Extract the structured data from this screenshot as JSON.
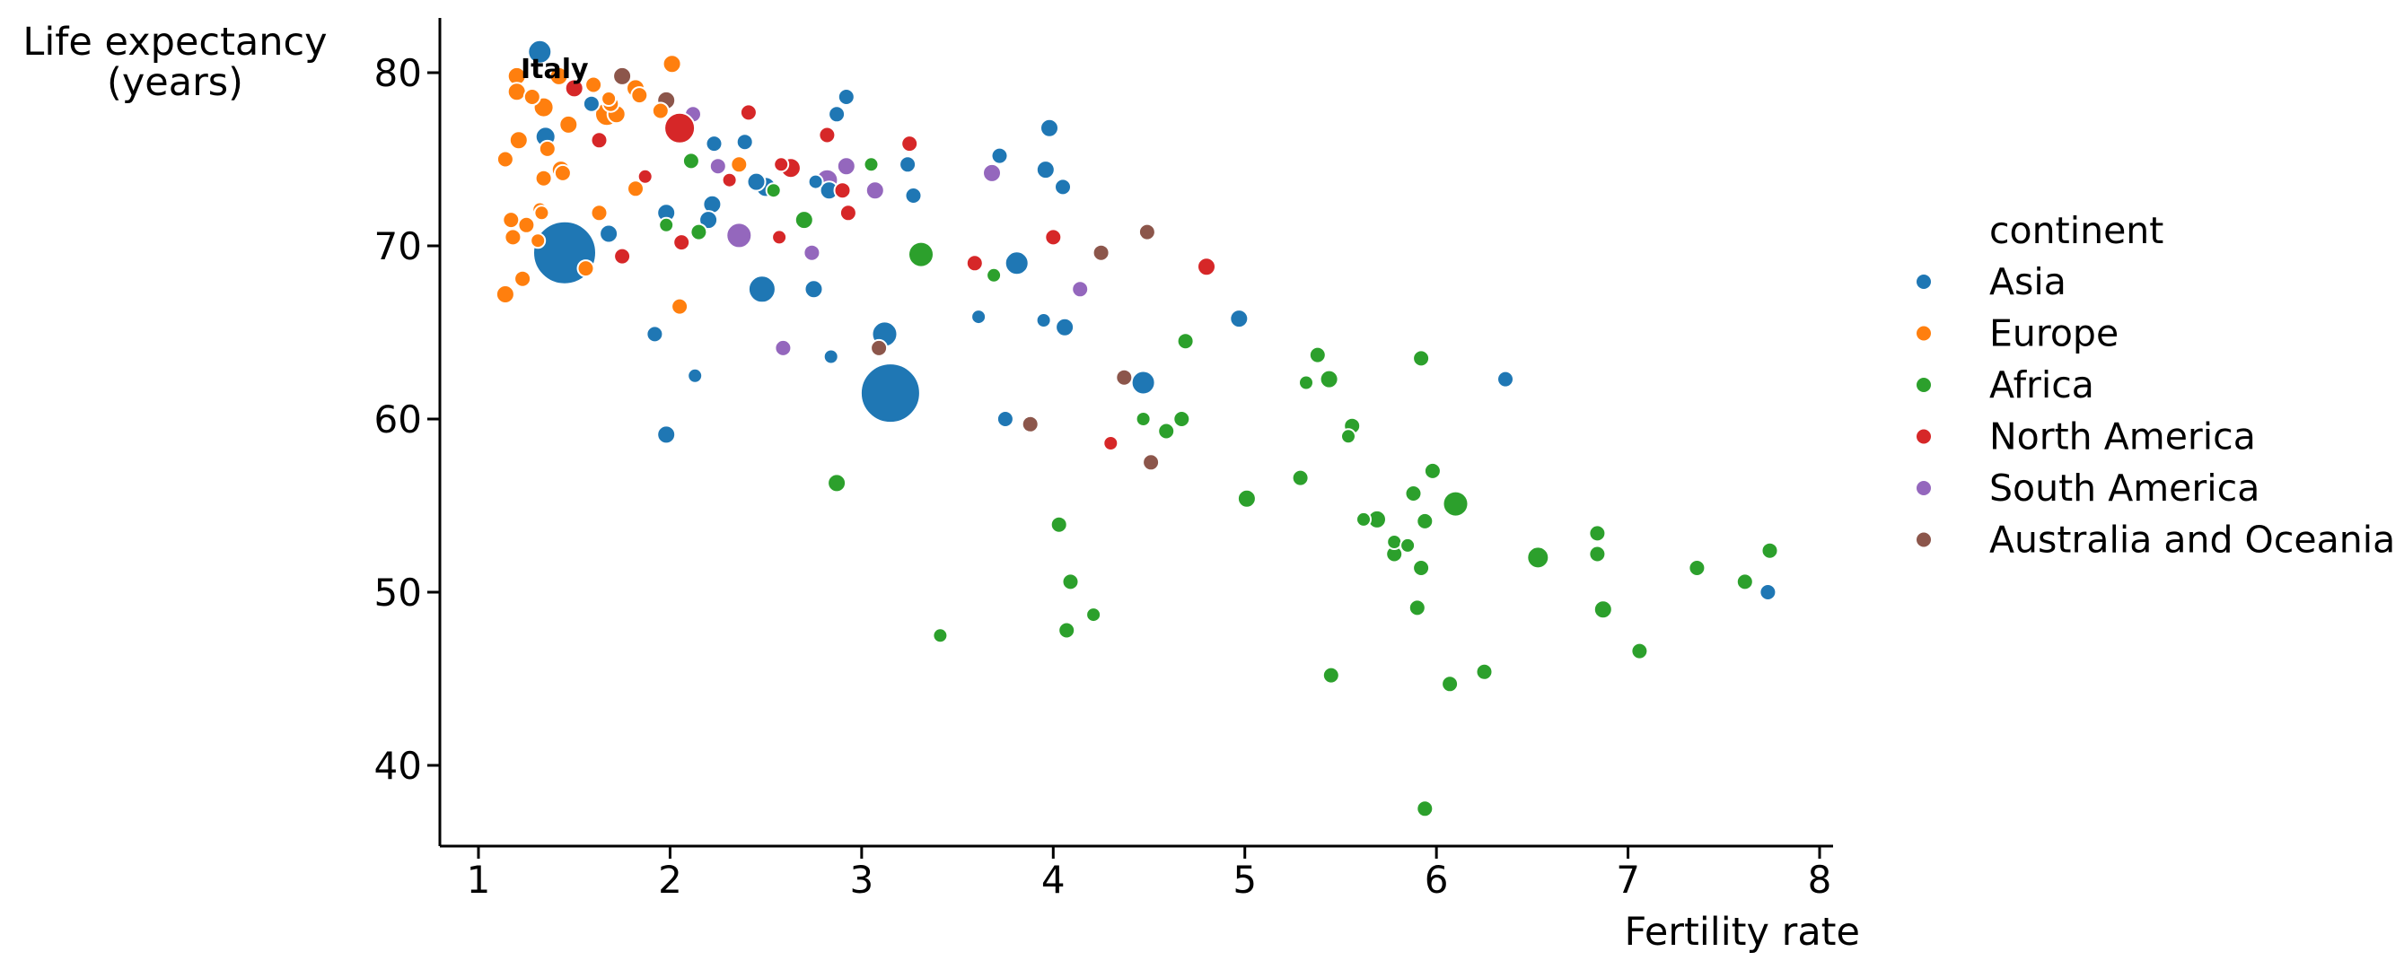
{
  "figure": {
    "background": "#ffffff",
    "text_color": "#000000"
  },
  "chart_data": {
    "type": "scatter",
    "title": "",
    "xlabel": "Fertility rate",
    "ylabel_line1": "Life expectancy",
    "ylabel_line2": "(years)",
    "x_ticks": [
      1,
      2,
      3,
      4,
      5,
      6,
      7,
      8
    ],
    "y_ticks": [
      40,
      50,
      60,
      70,
      80
    ],
    "xlim": [
      0.8,
      8.07
    ],
    "ylim": [
      35.3,
      83.2
    ],
    "grid": false,
    "legend_position": "right",
    "legend_title": "continent",
    "annotation": {
      "text": "Italy",
      "x": 1.22,
      "y": 79.7
    },
    "size_note": "third value per point = bubble radius in px (population-scaled)",
    "series": [
      {
        "name": "Asia",
        "color": "#1f77b4",
        "points": [
          [
            1.32,
            81.2,
            13
          ],
          [
            1.59,
            78.2,
            9
          ],
          [
            1.35,
            76.3,
            11
          ],
          [
            2.23,
            75.9,
            9
          ],
          [
            2.39,
            76.0,
            9
          ],
          [
            2.92,
            78.6,
            9
          ],
          [
            2.87,
            77.6,
            9
          ],
          [
            1.98,
            71.9,
            10
          ],
          [
            2.22,
            72.4,
            10
          ],
          [
            2.2,
            71.5,
            10
          ],
          [
            1.68,
            70.7,
            10
          ],
          [
            1.45,
            69.6,
            35
          ],
          [
            2.45,
            73.7,
            10
          ],
          [
            2.5,
            73.4,
            11
          ],
          [
            2.76,
            73.7,
            8
          ],
          [
            2.83,
            73.2,
            10
          ],
          [
            3.27,
            72.9,
            9
          ],
          [
            3.24,
            74.7,
            9
          ],
          [
            2.48,
            67.5,
            15
          ],
          [
            2.75,
            67.5,
            10
          ],
          [
            3.72,
            75.2,
            9
          ],
          [
            3.98,
            76.8,
            10
          ],
          [
            3.96,
            74.4,
            10
          ],
          [
            4.05,
            73.4,
            9
          ],
          [
            3.81,
            69.0,
            13
          ],
          [
            1.92,
            64.9,
            9
          ],
          [
            2.13,
            62.5,
            8
          ],
          [
            1.98,
            59.1,
            10
          ],
          [
            3.61,
            65.9,
            8
          ],
          [
            3.95,
            65.7,
            8
          ],
          [
            4.06,
            65.3,
            10
          ],
          [
            3.12,
            64.9,
            14
          ],
          [
            2.84,
            63.6,
            8
          ],
          [
            3.15,
            61.5,
            33
          ],
          [
            4.47,
            62.1,
            13
          ],
          [
            3.75,
            60.0,
            9
          ],
          [
            4.97,
            65.8,
            10
          ],
          [
            6.36,
            62.3,
            9
          ],
          [
            7.73,
            50.0,
            9
          ]
        ]
      },
      {
        "name": "Europe",
        "color": "#ff7f0e",
        "points": [
          [
            1.2,
            79.8,
            10
          ],
          [
            1.2,
            78.9,
            10
          ],
          [
            1.28,
            78.6,
            9
          ],
          [
            1.42,
            79.8,
            10
          ],
          [
            1.6,
            79.3,
            9
          ],
          [
            1.82,
            79.1,
            10
          ],
          [
            2.01,
            80.5,
            10
          ],
          [
            1.84,
            78.7,
            9
          ],
          [
            1.68,
            78.5,
            8
          ],
          [
            1.69,
            78.2,
            9
          ],
          [
            1.67,
            77.6,
            13
          ],
          [
            1.72,
            77.6,
            10
          ],
          [
            1.95,
            77.8,
            9
          ],
          [
            1.34,
            78.0,
            11
          ],
          [
            1.47,
            77.0,
            10
          ],
          [
            1.21,
            76.1,
            10
          ],
          [
            1.36,
            75.6,
            9
          ],
          [
            1.43,
            74.4,
            10
          ],
          [
            1.14,
            75.0,
            9
          ],
          [
            1.34,
            73.9,
            9
          ],
          [
            1.44,
            74.2,
            9
          ],
          [
            1.82,
            73.3,
            9
          ],
          [
            1.63,
            71.9,
            9
          ],
          [
            1.17,
            71.5,
            9
          ],
          [
            1.25,
            71.2,
            9
          ],
          [
            1.18,
            70.5,
            9
          ],
          [
            1.31,
            70.3,
            8
          ],
          [
            1.32,
            72.1,
            8
          ],
          [
            1.33,
            71.9,
            8
          ],
          [
            1.56,
            68.7,
            9
          ],
          [
            1.23,
            68.1,
            9
          ],
          [
            1.14,
            67.2,
            10
          ],
          [
            2.05,
            66.5,
            9
          ],
          [
            2.36,
            74.7,
            9
          ]
        ]
      },
      {
        "name": "Africa",
        "color": "#2ca02c",
        "points": [
          [
            2.11,
            74.9,
            9
          ],
          [
            1.98,
            71.2,
            8
          ],
          [
            2.15,
            70.8,
            9
          ],
          [
            2.7,
            71.5,
            10
          ],
          [
            2.54,
            73.2,
            8
          ],
          [
            3.05,
            74.7,
            8
          ],
          [
            3.31,
            69.5,
            14
          ],
          [
            3.69,
            68.3,
            8
          ],
          [
            2.87,
            56.3,
            10
          ],
          [
            3.41,
            47.5,
            8
          ],
          [
            4.03,
            53.9,
            9
          ],
          [
            4.09,
            50.6,
            9
          ],
          [
            4.21,
            48.7,
            8
          ],
          [
            4.07,
            47.8,
            9
          ],
          [
            4.69,
            64.5,
            9
          ],
          [
            5.38,
            63.7,
            9
          ],
          [
            5.92,
            63.5,
            9
          ],
          [
            5.32,
            62.1,
            8
          ],
          [
            5.44,
            62.3,
            10
          ],
          [
            4.67,
            60.0,
            9
          ],
          [
            4.59,
            59.3,
            9
          ],
          [
            4.47,
            60.0,
            8
          ],
          [
            5.56,
            59.6,
            9
          ],
          [
            5.54,
            59.0,
            8
          ],
          [
            5.29,
            56.6,
            9
          ],
          [
            5.01,
            55.4,
            10
          ],
          [
            5.98,
            57.0,
            9
          ],
          [
            5.88,
            55.7,
            9
          ],
          [
            6.1,
            55.1,
            14
          ],
          [
            5.62,
            54.2,
            8
          ],
          [
            5.69,
            54.2,
            10
          ],
          [
            5.94,
            54.1,
            9
          ],
          [
            5.78,
            52.9,
            8
          ],
          [
            5.85,
            52.7,
            8
          ],
          [
            5.78,
            52.2,
            9
          ],
          [
            5.92,
            51.4,
            9
          ],
          [
            5.9,
            49.1,
            9
          ],
          [
            6.53,
            52.0,
            12
          ],
          [
            6.84,
            53.4,
            9
          ],
          [
            6.84,
            52.2,
            9
          ],
          [
            7.36,
            51.4,
            9
          ],
          [
            7.74,
            52.4,
            9
          ],
          [
            7.61,
            50.6,
            9
          ],
          [
            6.87,
            49.0,
            10
          ],
          [
            7.06,
            46.6,
            9
          ],
          [
            5.45,
            45.2,
            9
          ],
          [
            6.07,
            44.7,
            9
          ],
          [
            6.25,
            45.4,
            9
          ],
          [
            5.94,
            37.5,
            9
          ]
        ]
      },
      {
        "name": "North America",
        "color": "#d62728",
        "points": [
          [
            1.5,
            79.1,
            10
          ],
          [
            2.05,
            76.8,
            17
          ],
          [
            2.41,
            77.7,
            9
          ],
          [
            1.63,
            76.1,
            9
          ],
          [
            1.87,
            74.0,
            8
          ],
          [
            2.31,
            73.8,
            8
          ],
          [
            2.63,
            74.5,
            11
          ],
          [
            2.58,
            74.7,
            8
          ],
          [
            2.57,
            70.5,
            8
          ],
          [
            2.06,
            70.2,
            9
          ],
          [
            1.75,
            69.4,
            9
          ],
          [
            2.82,
            76.4,
            9
          ],
          [
            3.25,
            75.9,
            9
          ],
          [
            2.9,
            73.2,
            9
          ],
          [
            2.93,
            71.9,
            9
          ],
          [
            3.59,
            69.0,
            9
          ],
          [
            4.0,
            70.5,
            9
          ],
          [
            4.3,
            58.6,
            8
          ],
          [
            4.8,
            68.8,
            10
          ]
        ]
      },
      {
        "name": "South America",
        "color": "#9467bd",
        "points": [
          [
            2.12,
            77.6,
            9,
            0
          ],
          [
            2.25,
            74.6,
            9
          ],
          [
            2.36,
            70.6,
            14
          ],
          [
            2.92,
            74.6,
            10
          ],
          [
            2.82,
            73.8,
            12
          ],
          [
            3.07,
            73.2,
            10
          ],
          [
            3.68,
            74.2,
            10
          ],
          [
            2.74,
            69.6,
            9
          ],
          [
            4.14,
            67.5,
            9
          ],
          [
            2.59,
            64.1,
            9
          ]
        ]
      },
      {
        "name": "Australia and Oceania",
        "color": "#8c564b",
        "points": [
          [
            1.75,
            79.8,
            10
          ],
          [
            1.98,
            78.4,
            10
          ],
          [
            3.09,
            64.1,
            9
          ],
          [
            4.25,
            69.6,
            9
          ],
          [
            4.49,
            70.8,
            9
          ],
          [
            4.37,
            62.4,
            9
          ],
          [
            3.88,
            59.7,
            9
          ],
          [
            4.51,
            57.5,
            9
          ]
        ]
      }
    ]
  }
}
